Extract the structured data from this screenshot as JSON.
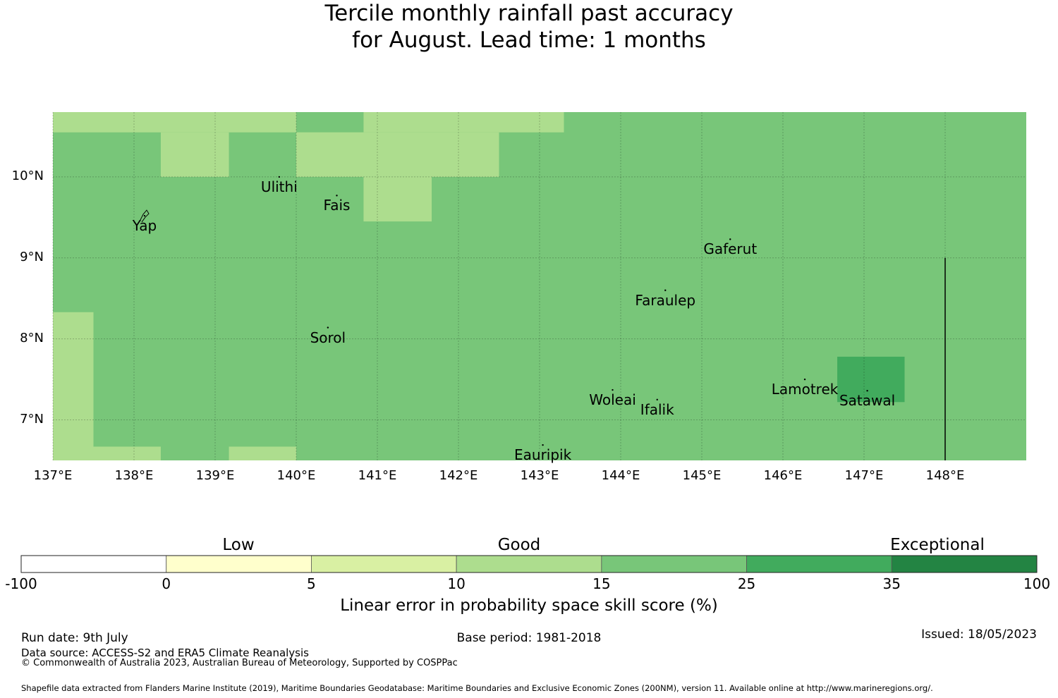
{
  "title": {
    "line1": "Tercile monthly rainfall past accuracy",
    "line2": "for August. Lead time: 1 months"
  },
  "map": {
    "lon_range": [
      137,
      149
    ],
    "lat_range": [
      6.5,
      10.8
    ],
    "lon_ticks": [
      "137°E",
      "138°E",
      "139°E",
      "140°E",
      "141°E",
      "142°E",
      "143°E",
      "144°E",
      "145°E",
      "146°E",
      "147°E",
      "148°E"
    ],
    "lat_ticks": [
      "10°N",
      "9°N",
      "8°N",
      "7°N"
    ],
    "base_color": "#78c679",
    "patches": [
      {
        "lon": [
          137.0,
          143.3
        ],
        "lat": [
          10.55,
          10.8
        ],
        "color": "#addd8e"
      },
      {
        "lon": [
          140.0,
          140.83
        ],
        "lat": [
          10.55,
          10.8
        ],
        "color": "#78c679"
      },
      {
        "lon": [
          138.33,
          139.17
        ],
        "lat": [
          10.0,
          10.55
        ],
        "color": "#addd8e"
      },
      {
        "lon": [
          140.0,
          142.5
        ],
        "lat": [
          10.0,
          10.55
        ],
        "color": "#addd8e"
      },
      {
        "lon": [
          140.83,
          141.67
        ],
        "lat": [
          9.45,
          10.0
        ],
        "color": "#addd8e"
      },
      {
        "lon": [
          137.0,
          137.5
        ],
        "lat": [
          6.5,
          8.33
        ],
        "color": "#addd8e"
      },
      {
        "lon": [
          137.5,
          138.33
        ],
        "lat": [
          6.5,
          6.67
        ],
        "color": "#addd8e"
      },
      {
        "lon": [
          139.17,
          140.0
        ],
        "lat": [
          6.5,
          6.67
        ],
        "color": "#addd8e"
      },
      {
        "lon": [
          146.67,
          147.5
        ],
        "lat": [
          7.22,
          7.78
        ],
        "color": "#41ab5d"
      }
    ],
    "boundary_line": {
      "lon": 148.0,
      "lat": [
        6.5,
        9.0
      ]
    },
    "places": [
      {
        "name": "Ulithi",
        "lon": 139.79,
        "lat": 10.0
      },
      {
        "name": "Fais",
        "lon": 140.5,
        "lat": 9.77
      },
      {
        "name": "Yap",
        "lon": 138.13,
        "lat": 9.52
      },
      {
        "name": "Gaferut",
        "lon": 145.35,
        "lat": 9.23
      },
      {
        "name": "Faraulep",
        "lon": 144.55,
        "lat": 8.6
      },
      {
        "name": "Sorol",
        "lon": 140.39,
        "lat": 8.14
      },
      {
        "name": "Woleai",
        "lon": 143.9,
        "lat": 7.37
      },
      {
        "name": "Ifalik",
        "lon": 144.45,
        "lat": 7.25
      },
      {
        "name": "Lamotrek",
        "lon": 146.27,
        "lat": 7.5
      },
      {
        "name": "Satawal",
        "lon": 147.04,
        "lat": 7.36
      },
      {
        "name": "Eauripik",
        "lon": 143.04,
        "lat": 6.69
      }
    ]
  },
  "legend": {
    "categories": [
      "Low",
      "Good",
      "Exceptional"
    ],
    "bins": [
      {
        "from": "-100",
        "to": "0",
        "color": "#ffffff"
      },
      {
        "from": "0",
        "to": "5",
        "color": "#ffffcc"
      },
      {
        "from": "5",
        "to": "10",
        "color": "#d9f0a3"
      },
      {
        "from": "10",
        "to": "15",
        "color": "#addd8e"
      },
      {
        "from": "15",
        "to": "25",
        "color": "#78c679"
      },
      {
        "from": "25",
        "to": "35",
        "color": "#41ab5d"
      },
      {
        "from": "35",
        "to": "100",
        "color": "#238443"
      }
    ],
    "ticks": [
      "-100",
      "0",
      "5",
      "10",
      "15",
      "25",
      "35",
      "100"
    ],
    "label": "Linear error in probability space skill score (%)"
  },
  "footer": {
    "run_date": "Run date: 9th July",
    "base_period": "Base period: 1981-2018",
    "issued": "Issued: 18/05/2023",
    "data_source": "Data source: ACCESS-S2 and ERA5 Climate Reanalysis",
    "copyright": "© Commonwealth of Australia 2023, Australian Bureau of Meteorology, Supported by COSPPac",
    "shapefile": "Shapefile data extracted from Flanders Marine Institute (2019), Maritime Boundaries Geodatabase: Maritime Boundaries and Exclusive Economic Zones (200NM), version 11. Available online at http://www.marineregions.org/."
  }
}
